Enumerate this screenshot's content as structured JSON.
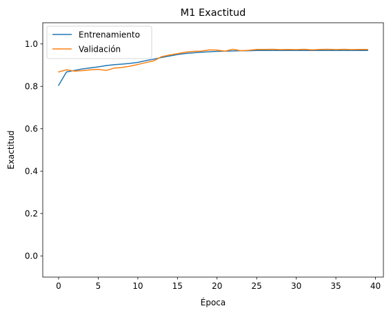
{
  "chart_data": {
    "type": "line",
    "title": "M1 Exactitud",
    "xlabel": "Época",
    "ylabel": "Exactitud",
    "xlim": [
      -2,
      41
    ],
    "ylim": [
      -0.1,
      1.1
    ],
    "xticks": [
      0,
      5,
      10,
      15,
      20,
      25,
      30,
      35,
      40
    ],
    "yticks": [
      0.0,
      0.2,
      0.4,
      0.6,
      0.8,
      1.0
    ],
    "xtick_labels": [
      "0",
      "5",
      "10",
      "15",
      "20",
      "25",
      "30",
      "35",
      "40"
    ],
    "ytick_labels": [
      "0.0",
      "0.2",
      "0.4",
      "0.6",
      "0.8",
      "1.0"
    ],
    "grid": false,
    "legend_position": "upper-left",
    "x": [
      0,
      1,
      2,
      3,
      4,
      5,
      6,
      7,
      8,
      9,
      10,
      11,
      12,
      13,
      14,
      15,
      16,
      17,
      18,
      19,
      20,
      21,
      22,
      23,
      24,
      25,
      26,
      27,
      28,
      29,
      30,
      31,
      32,
      33,
      34,
      35,
      36,
      37,
      38,
      39
    ],
    "series": [
      {
        "name": "Entrenamiento",
        "color": "#1f77b4",
        "values": [
          0.805,
          0.868,
          0.875,
          0.882,
          0.887,
          0.892,
          0.898,
          0.902,
          0.905,
          0.908,
          0.913,
          0.921,
          0.928,
          0.936,
          0.943,
          0.95,
          0.955,
          0.958,
          0.961,
          0.963,
          0.965,
          0.966,
          0.967,
          0.968,
          0.968,
          0.969,
          0.969,
          0.969,
          0.969,
          0.969,
          0.969,
          0.969,
          0.969,
          0.969,
          0.969,
          0.969,
          0.969,
          0.969,
          0.969,
          0.969
        ]
      },
      {
        "name": "Validación",
        "color": "#ff7f0e",
        "values": [
          0.868,
          0.878,
          0.872,
          0.874,
          0.878,
          0.88,
          0.875,
          0.886,
          0.889,
          0.895,
          0.903,
          0.912,
          0.92,
          0.94,
          0.948,
          0.954,
          0.961,
          0.965,
          0.966,
          0.972,
          0.971,
          0.966,
          0.975,
          0.968,
          0.97,
          0.974,
          0.974,
          0.975,
          0.973,
          0.974,
          0.973,
          0.975,
          0.972,
          0.974,
          0.975,
          0.973,
          0.975,
          0.973,
          0.974,
          0.974
        ]
      }
    ]
  }
}
